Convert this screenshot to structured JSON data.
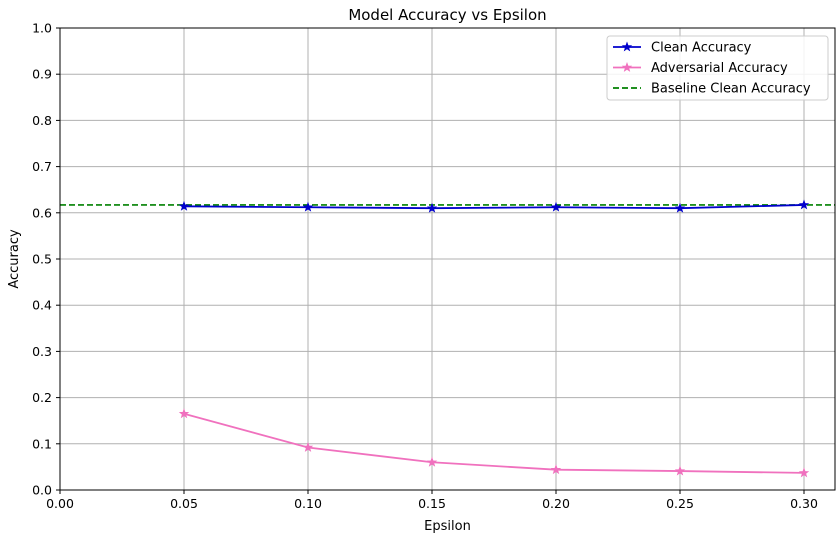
{
  "chart_data": {
    "type": "line",
    "title": "Model Accuracy vs Epsilon",
    "xlabel": "Epsilon",
    "ylabel": "Accuracy",
    "xlim": [
      0.0,
      0.3125
    ],
    "ylim": [
      0.0,
      1.0
    ],
    "x_ticks": [
      "0.00",
      "0.05",
      "0.10",
      "0.15",
      "0.20",
      "0.25",
      "0.30"
    ],
    "y_ticks": [
      "0.0",
      "0.1",
      "0.2",
      "0.3",
      "0.4",
      "0.5",
      "0.6",
      "0.7",
      "0.8",
      "0.9",
      "1.0"
    ],
    "grid": true,
    "legend_position": "top-right",
    "x": [
      0.05,
      0.1,
      0.15,
      0.2,
      0.25,
      0.3
    ],
    "series": [
      {
        "name": "Clean Accuracy",
        "values": [
          0.614,
          0.612,
          0.61,
          0.612,
          0.61,
          0.617
        ],
        "color": "#0000cc",
        "marker": "star",
        "style": "solid"
      },
      {
        "name": "Adversarial Accuracy",
        "values": [
          0.165,
          0.092,
          0.06,
          0.044,
          0.041,
          0.037
        ],
        "color": "#f071be",
        "marker": "star",
        "style": "solid"
      }
    ],
    "reference_lines": [
      {
        "name": "Baseline Clean Accuracy",
        "value": 0.617,
        "color": "#008000",
        "style": "dashed"
      }
    ]
  }
}
